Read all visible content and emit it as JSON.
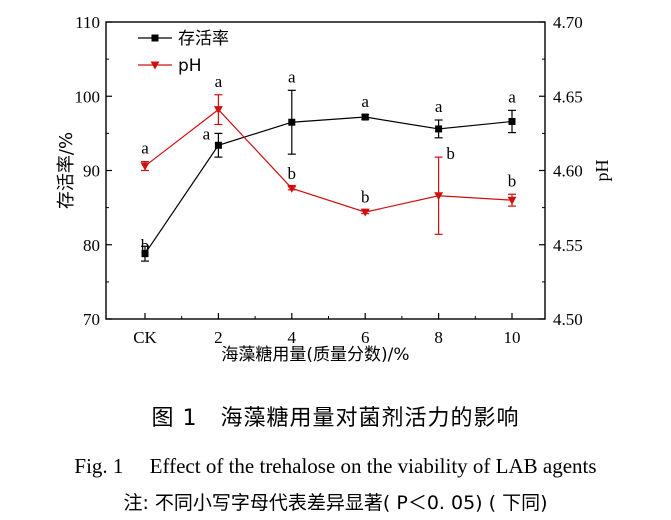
{
  "chart_data": {
    "type": "line",
    "categories": [
      "CK",
      "2",
      "4",
      "6",
      "8",
      "10"
    ],
    "xlabel": "海藻糖用量(质量分数)/%",
    "ylabel_left": "存活率/%",
    "ylabel_right": "pH",
    "ylim_left": [
      70,
      110
    ],
    "ylim_right": [
      4.5,
      4.7
    ],
    "yticks_left": [
      "70",
      "80",
      "90",
      "100",
      "110"
    ],
    "yticks_right": [
      "4.50",
      "4.55",
      "4.60",
      "4.65",
      "4.70"
    ],
    "legend_position": "top-left",
    "series": [
      {
        "name": "存活率",
        "axis": "left",
        "color": "#000000",
        "marker": "square",
        "values": [
          78.8,
          93.4,
          96.5,
          97.2,
          95.6,
          96.6
        ],
        "errors": [
          1.0,
          1.6,
          4.3,
          0.3,
          1.2,
          1.5
        ],
        "labels": [
          "b",
          "a",
          "a",
          "a",
          "a",
          "a"
        ]
      },
      {
        "name": "pH",
        "axis": "right",
        "color": "#d01010",
        "marker": "triangle-down",
        "values": [
          4.603,
          4.641,
          4.588,
          4.572,
          4.583,
          4.58
        ],
        "errors": [
          0.003,
          0.01,
          0.001,
          0.001,
          0.026,
          0.004
        ],
        "labels": [
          "a",
          "a",
          "b",
          "b",
          "b",
          "b"
        ]
      }
    ]
  },
  "captions": {
    "zh": "图 1　海藻糖用量对菌剂活力的影响",
    "en": "Fig. 1　 Effect of the trehalose on the viability of LAB agents",
    "note": "注: 不同小写字母代表差异显著( P＜0. 05) ( 下同)"
  }
}
